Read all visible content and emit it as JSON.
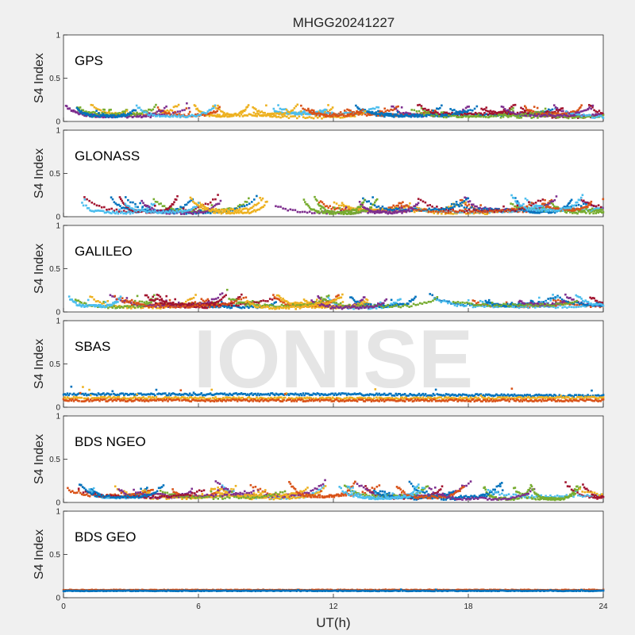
{
  "figure_title": "MHGG20241227",
  "watermark": "IONISE",
  "xlabel": "UT(h)",
  "xticks": [
    "0",
    "6",
    "12",
    "18",
    "24"
  ],
  "panel_ylabel": "S4 Index",
  "yticks": [
    "0",
    "0.5",
    "1"
  ],
  "colors": {
    "background": "#f0f0f0",
    "axes_bg": "#ffffff",
    "watermark": "#e3e3e3",
    "series": [
      "#0072BD",
      "#D95319",
      "#EDB120",
      "#7E2F8E",
      "#77AC30",
      "#4DBEEE",
      "#A2142F"
    ]
  },
  "chart_data": [
    {
      "type": "scatter",
      "title": "GPS",
      "xlabel": "UT(h)",
      "ylabel": "S4 Index",
      "xlim": [
        0,
        24
      ],
      "ylim": [
        0,
        1
      ],
      "x_ticks": [
        0,
        6,
        12,
        18,
        24
      ],
      "y_ticks": [
        0,
        0.5,
        1
      ],
      "grid": false,
      "s4_mean_approx": 0.08,
      "s4_max_approx": 0.2,
      "num_satellite_colors": 7
    },
    {
      "type": "scatter",
      "title": "GLONASS",
      "xlabel": "UT(h)",
      "ylabel": "S4 Index",
      "xlim": [
        0,
        24
      ],
      "ylim": [
        0,
        1
      ],
      "x_ticks": [
        0,
        6,
        12,
        18,
        24
      ],
      "y_ticks": [
        0,
        0.5,
        1
      ],
      "grid": false,
      "s4_mean_approx": 0.07,
      "s4_max_approx": 0.25,
      "num_satellite_colors": 7
    },
    {
      "type": "scatter",
      "title": "GALILEO",
      "xlabel": "UT(h)",
      "ylabel": "S4 Index",
      "xlim": [
        0,
        24
      ],
      "ylim": [
        0,
        1
      ],
      "x_ticks": [
        0,
        6,
        12,
        18,
        24
      ],
      "y_ticks": [
        0,
        0.5,
        1
      ],
      "grid": false,
      "s4_mean_approx": 0.08,
      "s4_max_approx": 0.22,
      "num_satellite_colors": 7
    },
    {
      "type": "scatter",
      "title": "SBAS",
      "xlabel": "UT(h)",
      "ylabel": "S4 Index",
      "xlim": [
        0,
        24
      ],
      "ylim": [
        0,
        1
      ],
      "x_ticks": [
        0,
        6,
        12,
        18,
        24
      ],
      "y_ticks": [
        0,
        0.5,
        1
      ],
      "grid": false,
      "series": [
        {
          "color": "#0072BD",
          "s4_level_approx": [
            [
              0,
              0.15
            ],
            [
              12,
              0.15
            ],
            [
              24,
              0.13
            ]
          ]
        },
        {
          "color": "#EDB120",
          "s4_level_approx": [
            [
              0,
              0.11
            ],
            [
              12,
              0.1
            ],
            [
              24,
              0.11
            ]
          ]
        },
        {
          "color": "#D95319",
          "s4_level_approx": [
            [
              0,
              0.08
            ],
            [
              12,
              0.08
            ],
            [
              24,
              0.08
            ]
          ]
        }
      ],
      "s4_max_approx": 0.27
    },
    {
      "type": "scatter",
      "title": "BDS NGEO",
      "xlabel": "UT(h)",
      "ylabel": "S4 Index",
      "xlim": [
        0,
        24
      ],
      "ylim": [
        0,
        1
      ],
      "x_ticks": [
        0,
        6,
        12,
        18,
        24
      ],
      "y_ticks": [
        0,
        0.5,
        1
      ],
      "grid": false,
      "s4_mean_approx": 0.07,
      "s4_max_approx": 0.25,
      "num_satellite_colors": 7
    },
    {
      "type": "scatter",
      "title": "BDS GEO",
      "xlabel": "UT(h)",
      "ylabel": "S4 Index",
      "xlim": [
        0,
        24
      ],
      "ylim": [
        0,
        1
      ],
      "x_ticks": [
        0,
        6,
        12,
        18,
        24
      ],
      "y_ticks": [
        0,
        0.5,
        1
      ],
      "grid": false,
      "series": [
        {
          "color": "#D95319",
          "s4_level_approx": [
            [
              0,
              0.09
            ],
            [
              24,
              0.09
            ]
          ]
        },
        {
          "color": "#0072BD",
          "s4_level_approx": [
            [
              0,
              0.08
            ],
            [
              24,
              0.08
            ]
          ]
        }
      ],
      "s4_max_approx": 0.1
    }
  ]
}
